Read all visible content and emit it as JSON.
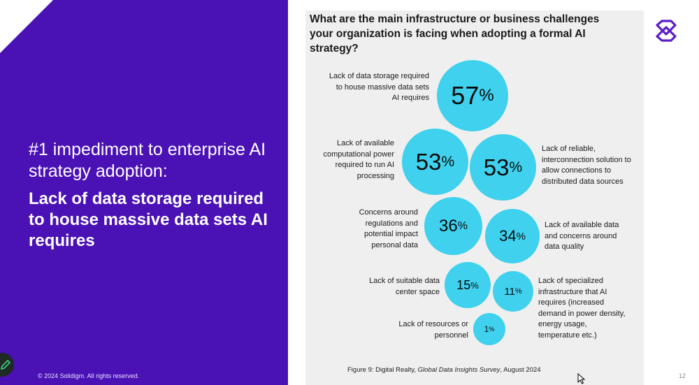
{
  "left_panel": {
    "subtitle": "#1 impediment to enterprise AI strategy adoption:",
    "headline": "Lack of data storage required to house massive data sets AI requires",
    "copyright": "© 2024 Solidigm. All rights reserved."
  },
  "chart": {
    "question": "What are the main infrastructure or business challenges your organization is facing when adopting a formal AI strategy?",
    "figure_caption_prefix": "Figure 9: Digital Realty, ",
    "figure_caption_title": "Global Data Insights Survey",
    "figure_caption_suffix": ", August 2024",
    "page_number": "12"
  },
  "chart_data": {
    "type": "bubble",
    "title": "What are the main infrastructure or business challenges your organization is facing when adopting a formal AI strategy?",
    "unit": "%",
    "items": [
      {
        "label": "Lack of data storage required to house massive data sets AI requires",
        "value": 57
      },
      {
        "label": "Lack of available computational power required to run AI processing",
        "value": 53
      },
      {
        "label": "Lack of reliable, interconnection solution to allow connections to distributed data sources",
        "value": 53
      },
      {
        "label": "Concerns around regulations and potential impact personal data",
        "value": 36
      },
      {
        "label": "Lack of available data and concerns around data quality",
        "value": 34
      },
      {
        "label": "Lack of suitable data center space",
        "value": 15
      },
      {
        "label": "Lack of specialized infrastructure that AI requires (increased demand in power density, energy usage, temperature etc.)",
        "value": 11
      },
      {
        "label": "Lack of resources or personnel",
        "value": 1
      }
    ]
  },
  "colors": {
    "left_bg": "#4a11b5",
    "bubble": "#3fd1ed",
    "panel_bg": "#efefef",
    "logo": "#5b1ec9"
  },
  "icons": {
    "edit": "pencil-icon",
    "logo": "solidigm-logo-icon",
    "cursor": "mouse-cursor-icon"
  }
}
